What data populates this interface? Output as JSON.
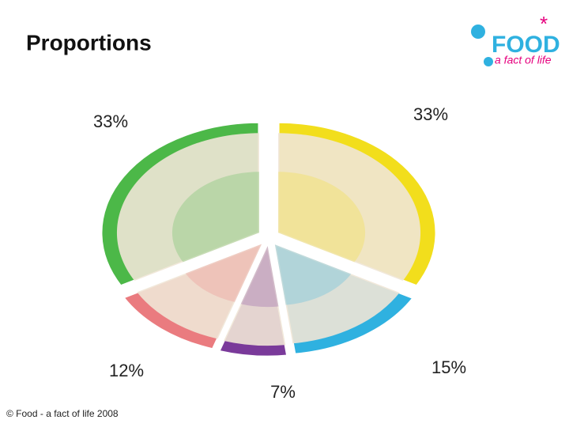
{
  "chart_data": {
    "type": "pie",
    "title": "Proportions",
    "values": [
      33,
      15,
      7,
      12,
      33
    ],
    "value_labels": [
      "33%",
      "15%",
      "7%",
      "12%",
      "33%"
    ],
    "colors": [
      "#f2de1c",
      "#2fb1e0",
      "#7a3a9a",
      "#ea7b7f",
      "#4cb848"
    ]
  },
  "logo": {
    "name": "FOOD",
    "tagline": "a fact of life"
  },
  "footer": "© Food - a fact of life 2008"
}
